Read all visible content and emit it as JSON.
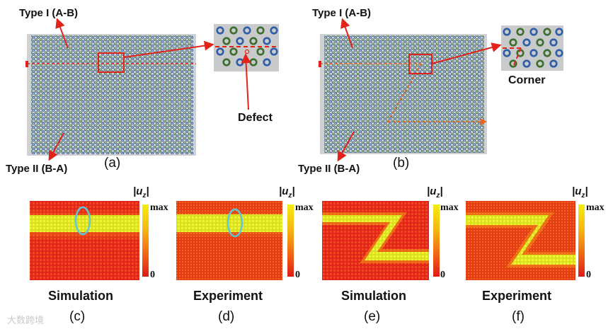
{
  "panel_a": {
    "label_top": "Type I (A-B)",
    "label_bottom": "Type II (B-A)",
    "inset_label": "Defect",
    "caption": "(a)"
  },
  "panel_b": {
    "label_top": "Type I (A-B)",
    "label_bottom": "Type II (B-A)",
    "inset_label": "Corner",
    "caption": "(b)"
  },
  "maps": [
    {
      "id": "c",
      "title": "Simulation",
      "caption": "(c)",
      "uz": "|u",
      "uz_sub": "z",
      "uz_end": "|",
      "max": "max",
      "min": "0"
    },
    {
      "id": "d",
      "title": "Experiment",
      "caption": "(d)",
      "uz": "|u",
      "uz_sub": "z",
      "uz_end": "|",
      "max": "max",
      "min": "0"
    },
    {
      "id": "e",
      "title": "Simulation",
      "caption": "(e)",
      "uz": "|u",
      "uz_sub": "z",
      "uz_end": "|",
      "max": "max",
      "min": "0"
    },
    {
      "id": "f",
      "title": "Experiment",
      "caption": "(f)",
      "uz": "|u",
      "uz_sub": "z",
      "uz_end": "|",
      "max": "max",
      "min": "0"
    }
  ],
  "colors": {
    "lattice_bg": "#c9cbcc",
    "sublattice_a": "#2a4ea0",
    "sublattice_b": "#3d6e2e",
    "arrow": "#e2231a",
    "ellipse": "#5fc8d8",
    "hot": "#e01a16",
    "yellow": "#f4ee10"
  },
  "watermark": "大数跨境"
}
